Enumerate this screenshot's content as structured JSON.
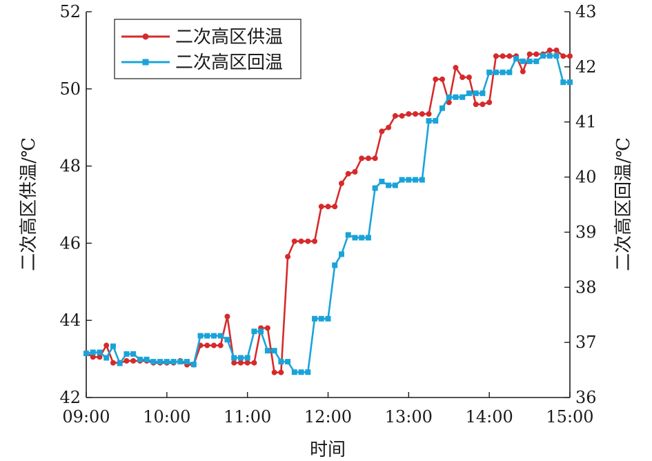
{
  "chart_data": {
    "type": "line",
    "xlabel": "时间",
    "y_left_label": "二次高区供温/℃",
    "y_right_label": "二次高区回温/℃",
    "xlim": [
      "09:00",
      "15:00"
    ],
    "x_ticks": [
      "09:00",
      "10:00",
      "11:00",
      "12:00",
      "13:00",
      "14:00",
      "15:00"
    ],
    "y_left": {
      "lim": [
        42,
        52
      ],
      "ticks": [
        42,
        44,
        46,
        48,
        50,
        52
      ]
    },
    "y_right": {
      "lim": [
        36,
        43
      ],
      "ticks": [
        36,
        37,
        38,
        39,
        40,
        41,
        42,
        43
      ]
    },
    "legend": {
      "position": "top-left"
    },
    "grid": false,
    "series": [
      {
        "name": "二次高区供温",
        "axis": "left",
        "color": "#d62a2a",
        "marker": "circle",
        "x": [
          "09:00",
          "09:05",
          "09:10",
          "09:15",
          "09:20",
          "09:25",
          "09:30",
          "09:35",
          "09:40",
          "09:45",
          "09:50",
          "09:55",
          "10:00",
          "10:05",
          "10:10",
          "10:15",
          "10:20",
          "10:25",
          "10:30",
          "10:35",
          "10:40",
          "10:45",
          "10:50",
          "10:55",
          "11:00",
          "11:05",
          "11:10",
          "11:15",
          "11:20",
          "11:25",
          "11:30",
          "11:35",
          "11:40",
          "11:45",
          "11:50",
          "11:55",
          "12:00",
          "12:05",
          "12:10",
          "12:15",
          "12:20",
          "12:25",
          "12:30",
          "12:35",
          "12:40",
          "12:45",
          "12:50",
          "12:55",
          "13:00",
          "13:05",
          "13:10",
          "13:15",
          "13:20",
          "13:25",
          "13:30",
          "13:35",
          "13:40",
          "13:45",
          "13:50",
          "13:55",
          "14:00",
          "14:05",
          "14:10",
          "14:15",
          "14:20",
          "14:25",
          "14:30",
          "14:35",
          "14:40",
          "14:45",
          "14:50",
          "14:55",
          "15:00"
        ],
        "values": [
          43.15,
          43.05,
          43.05,
          43.35,
          42.9,
          42.9,
          42.95,
          42.95,
          42.95,
          42.95,
          42.9,
          42.9,
          42.9,
          42.9,
          42.95,
          42.85,
          42.85,
          43.35,
          43.35,
          43.35,
          43.35,
          44.1,
          42.9,
          42.9,
          42.9,
          42.9,
          43.8,
          43.8,
          42.65,
          42.65,
          45.65,
          46.05,
          46.05,
          46.05,
          46.05,
          46.95,
          46.95,
          46.95,
          47.55,
          47.8,
          47.85,
          48.2,
          48.2,
          48.2,
          48.9,
          49.0,
          49.3,
          49.3,
          49.35,
          49.35,
          49.35,
          49.35,
          50.25,
          50.25,
          49.65,
          50.55,
          50.3,
          50.3,
          49.6,
          49.6,
          49.65,
          50.85,
          50.85,
          50.85,
          50.85,
          50.45,
          50.9,
          50.9,
          50.9,
          51.0,
          51.0,
          50.85,
          50.85
        ]
      },
      {
        "name": "二次高区回温",
        "axis": "right",
        "color": "#1aa3d8",
        "marker": "square",
        "x": [
          "09:00",
          "09:05",
          "09:10",
          "09:15",
          "09:20",
          "09:25",
          "09:30",
          "09:35",
          "09:40",
          "09:45",
          "09:50",
          "09:55",
          "10:00",
          "10:05",
          "10:10",
          "10:15",
          "10:20",
          "10:25",
          "10:30",
          "10:35",
          "10:40",
          "10:45",
          "10:50",
          "10:55",
          "11:00",
          "11:05",
          "11:10",
          "11:15",
          "11:20",
          "11:25",
          "11:30",
          "11:35",
          "11:40",
          "11:45",
          "11:50",
          "11:55",
          "12:00",
          "12:05",
          "12:10",
          "12:15",
          "12:20",
          "12:25",
          "12:30",
          "12:35",
          "12:40",
          "12:45",
          "12:50",
          "12:55",
          "13:00",
          "13:05",
          "13:10",
          "13:15",
          "13:20",
          "13:25",
          "13:30",
          "13:35",
          "13:40",
          "13:45",
          "13:50",
          "13:55",
          "14:00",
          "14:05",
          "14:10",
          "14:15",
          "14:20",
          "14:25",
          "14:30",
          "14:35",
          "14:40",
          "14:45",
          "14:50",
          "14:55",
          "15:00"
        ],
        "values": [
          36.8,
          36.82,
          36.82,
          36.72,
          36.93,
          36.62,
          36.79,
          36.79,
          36.69,
          36.69,
          36.65,
          36.65,
          36.65,
          36.65,
          36.65,
          36.65,
          36.6,
          37.12,
          37.12,
          37.12,
          37.12,
          37.05,
          36.72,
          36.72,
          36.72,
          37.2,
          37.2,
          36.85,
          36.85,
          36.65,
          36.65,
          36.46,
          36.46,
          36.46,
          37.43,
          37.43,
          37.43,
          38.4,
          38.6,
          38.95,
          38.9,
          38.9,
          38.9,
          39.8,
          39.92,
          39.85,
          39.85,
          39.95,
          39.95,
          39.95,
          39.95,
          41.02,
          41.02,
          41.25,
          41.45,
          41.45,
          41.45,
          41.52,
          41.52,
          41.52,
          41.9,
          41.9,
          41.9,
          41.9,
          42.15,
          42.1,
          42.1,
          42.1,
          42.2,
          42.2,
          42.2,
          41.72,
          41.72
        ]
      }
    ]
  }
}
